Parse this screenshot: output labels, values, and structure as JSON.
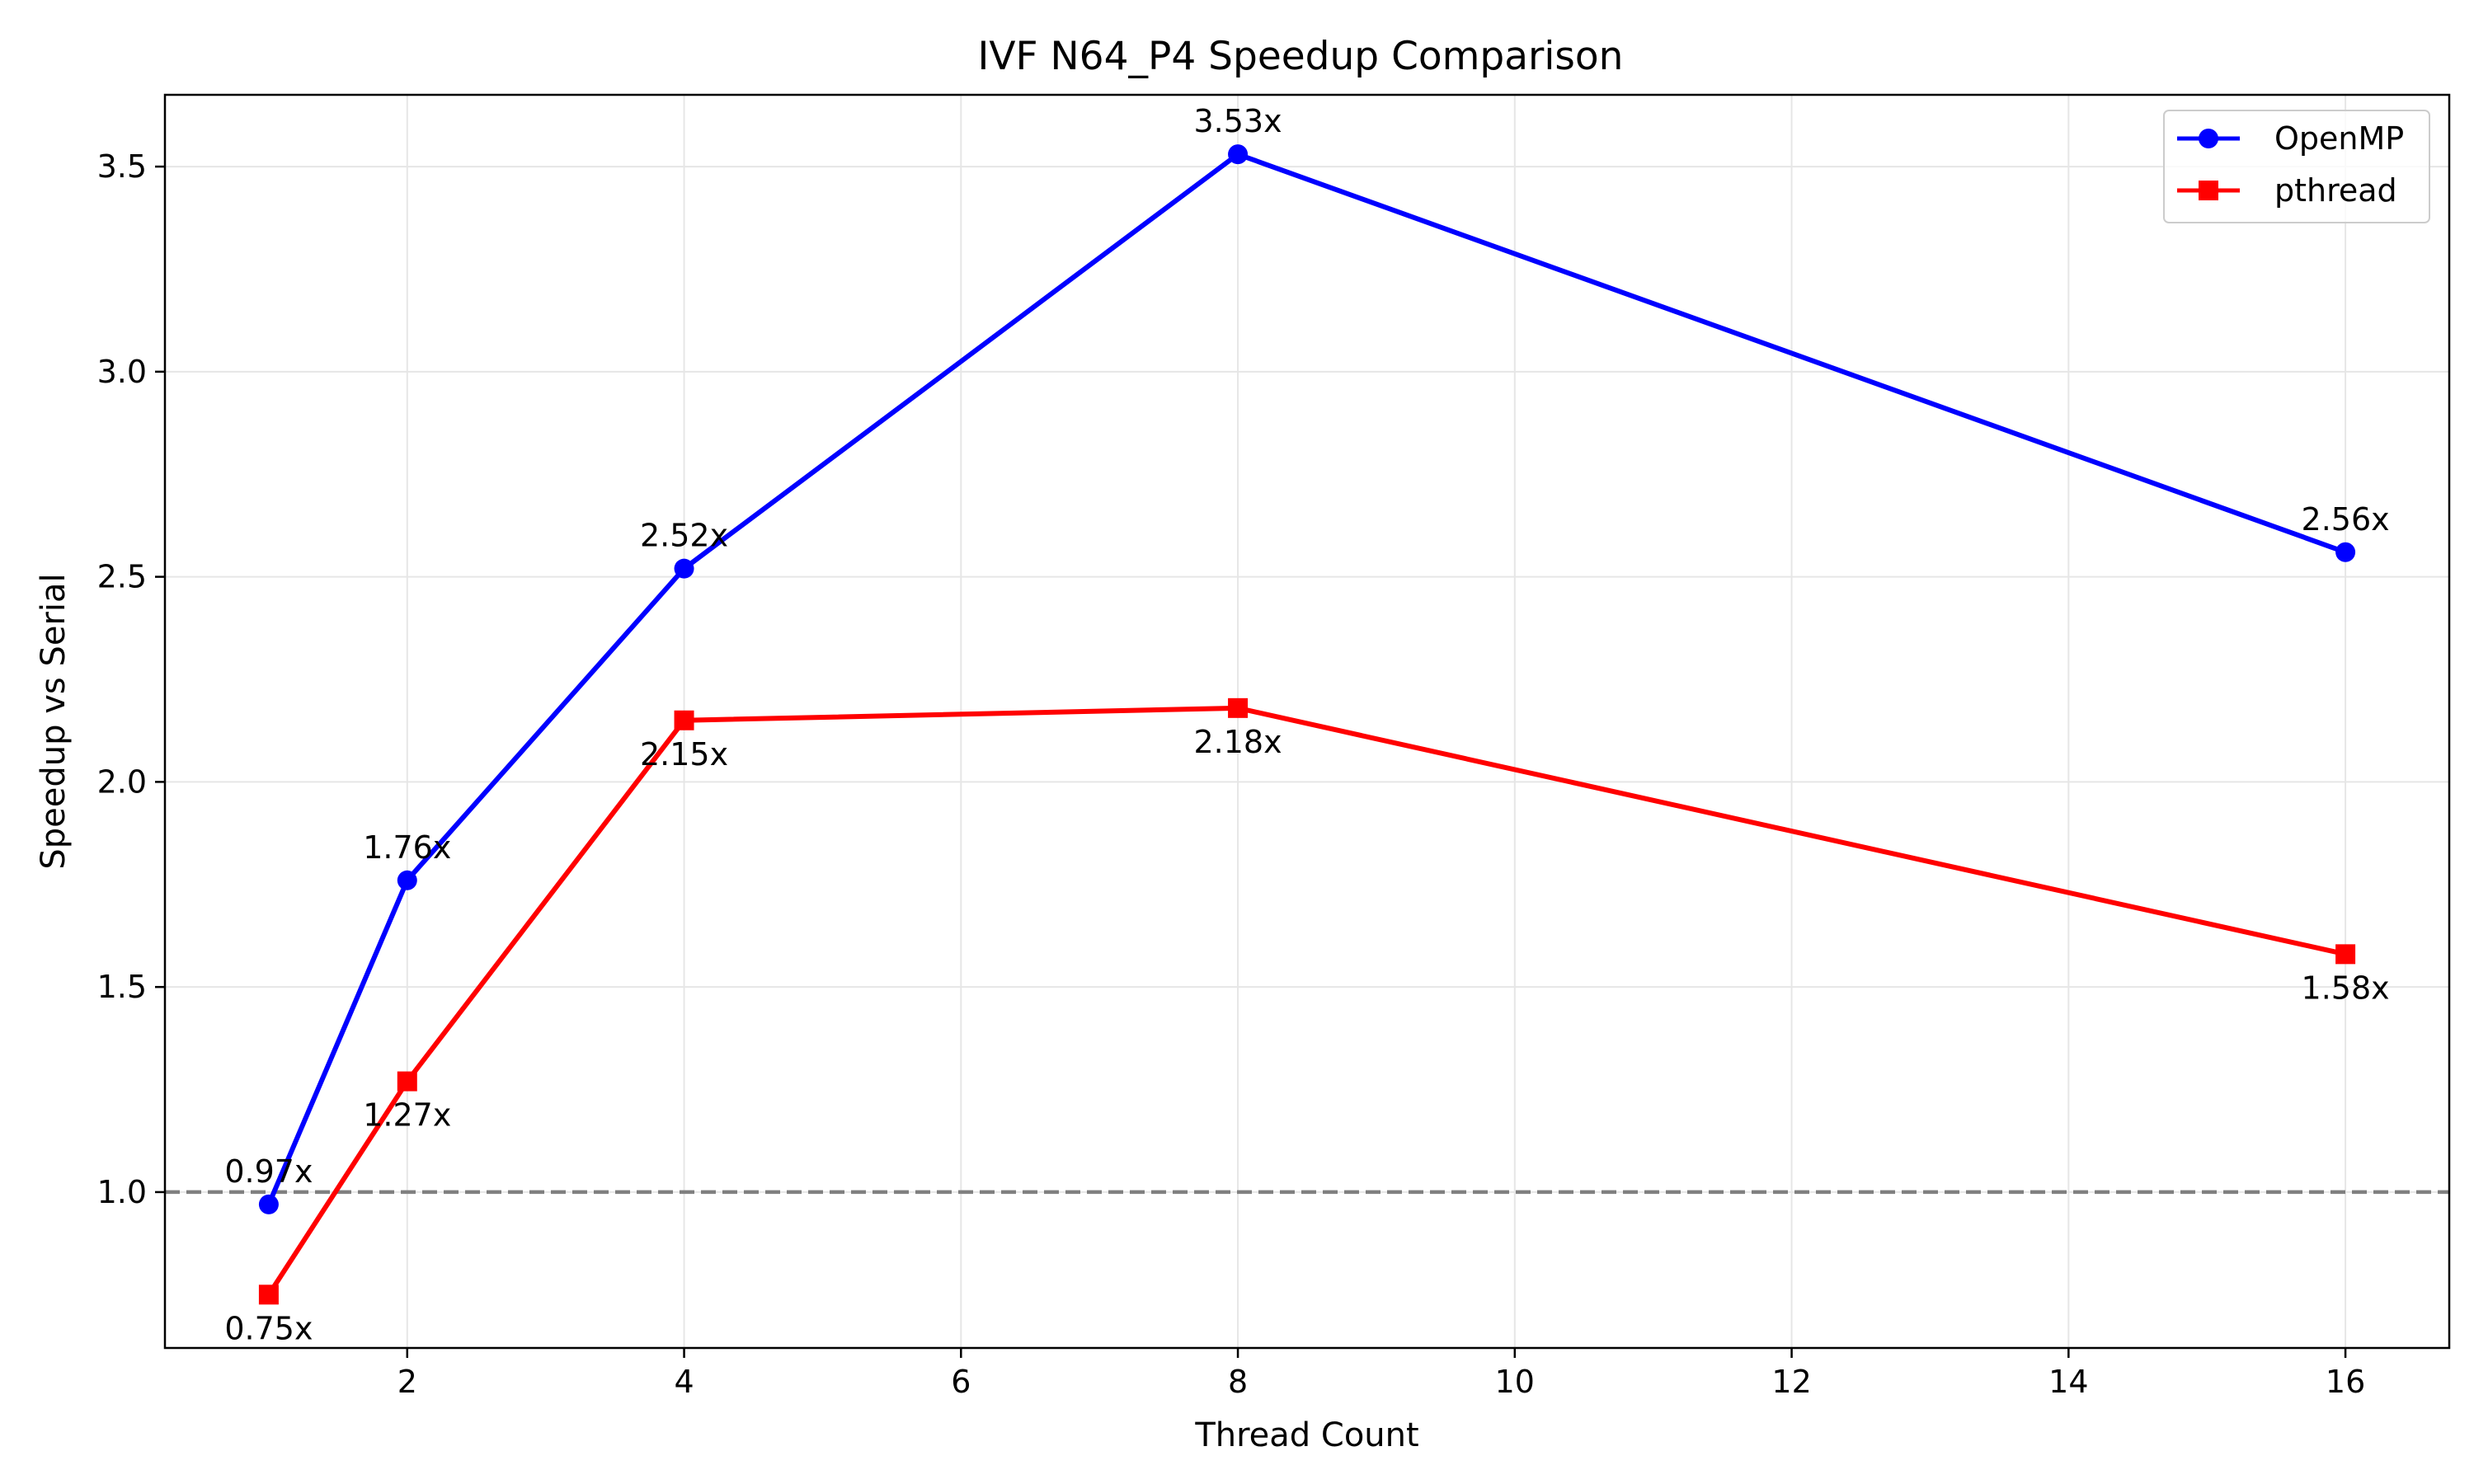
{
  "chart_data": {
    "type": "line",
    "title": "IVF N64_P4 Speedup Comparison",
    "xlabel": "Thread Count",
    "ylabel": "Speedup vs Serial",
    "x": [
      1,
      2,
      4,
      8,
      16
    ],
    "xlim": [
      0.25,
      16.75
    ],
    "ylim": [
      0.62,
      3.675
    ],
    "xticks": [
      2,
      4,
      6,
      8,
      10,
      12,
      14,
      16
    ],
    "yticks": [
      1.0,
      1.5,
      2.0,
      2.5,
      3.0,
      3.5
    ],
    "ytick_labels": [
      "1.0",
      "1.5",
      "2.0",
      "2.5",
      "3.0",
      "3.5"
    ],
    "grid": true,
    "legend_position": "top-right",
    "reference_line": {
      "y": 1.0,
      "style": "dashed",
      "color": "#808080"
    },
    "series": [
      {
        "name": "OpenMP",
        "color": "#0000ff",
        "marker": "circle",
        "values": [
          0.97,
          1.76,
          2.52,
          3.53,
          2.56
        ],
        "labels": [
          "0.97x",
          "1.76x",
          "2.52x",
          "3.53x",
          "2.56x"
        ],
        "label_position": "above"
      },
      {
        "name": "pthread",
        "color": "#ff0000",
        "marker": "square",
        "values": [
          0.75,
          1.27,
          2.15,
          2.18,
          1.58
        ],
        "labels": [
          "0.75x",
          "1.27x",
          "2.15x",
          "2.18x",
          "1.58x"
        ],
        "label_position": "below"
      }
    ]
  }
}
